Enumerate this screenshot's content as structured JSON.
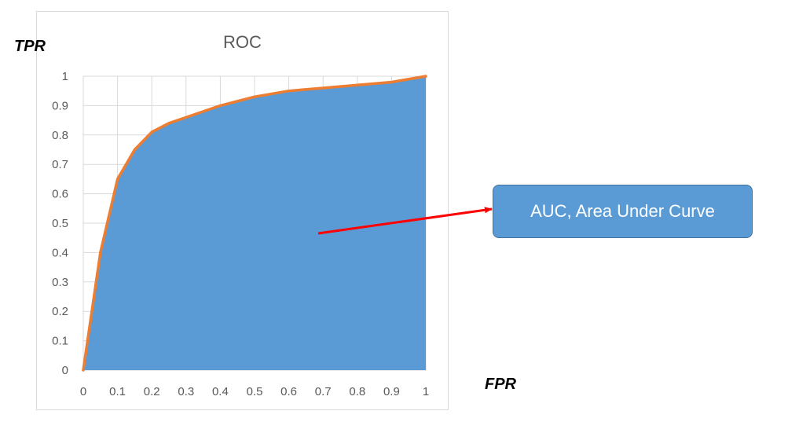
{
  "chart_data": {
    "type": "area",
    "title": "ROC",
    "xlabel": "FPR",
    "ylabel": "TPR",
    "xlim": [
      0,
      1
    ],
    "ylim": [
      0,
      1
    ],
    "x_ticks": [
      "0",
      "0.1",
      "0.2",
      "0.3",
      "0.4",
      "0.5",
      "0.6",
      "0.7",
      "0.8",
      "0.9",
      "1"
    ],
    "y_ticks": [
      "0",
      "0.1",
      "0.2",
      "0.3",
      "0.4",
      "0.5",
      "0.6",
      "0.7",
      "0.8",
      "0.9",
      "1"
    ],
    "grid": true,
    "series": [
      {
        "x": [
          0,
          0.05,
          0.1,
          0.15,
          0.2,
          0.25,
          0.3,
          0.4,
          0.5,
          0.6,
          0.7,
          0.8,
          0.9,
          1.0
        ],
        "y": [
          0,
          0.4,
          0.65,
          0.75,
          0.81,
          0.84,
          0.86,
          0.9,
          0.93,
          0.95,
          0.96,
          0.97,
          0.98,
          1.0
        ]
      }
    ],
    "area_color": "#5b9bd5",
    "line_color": "#ed7d31",
    "grid_color": "#d9d9d9",
    "annotation": {
      "text": "AUC, Area Under Curve",
      "arrow_color": "#ff0000",
      "box_color": "#5b9bd5"
    }
  }
}
